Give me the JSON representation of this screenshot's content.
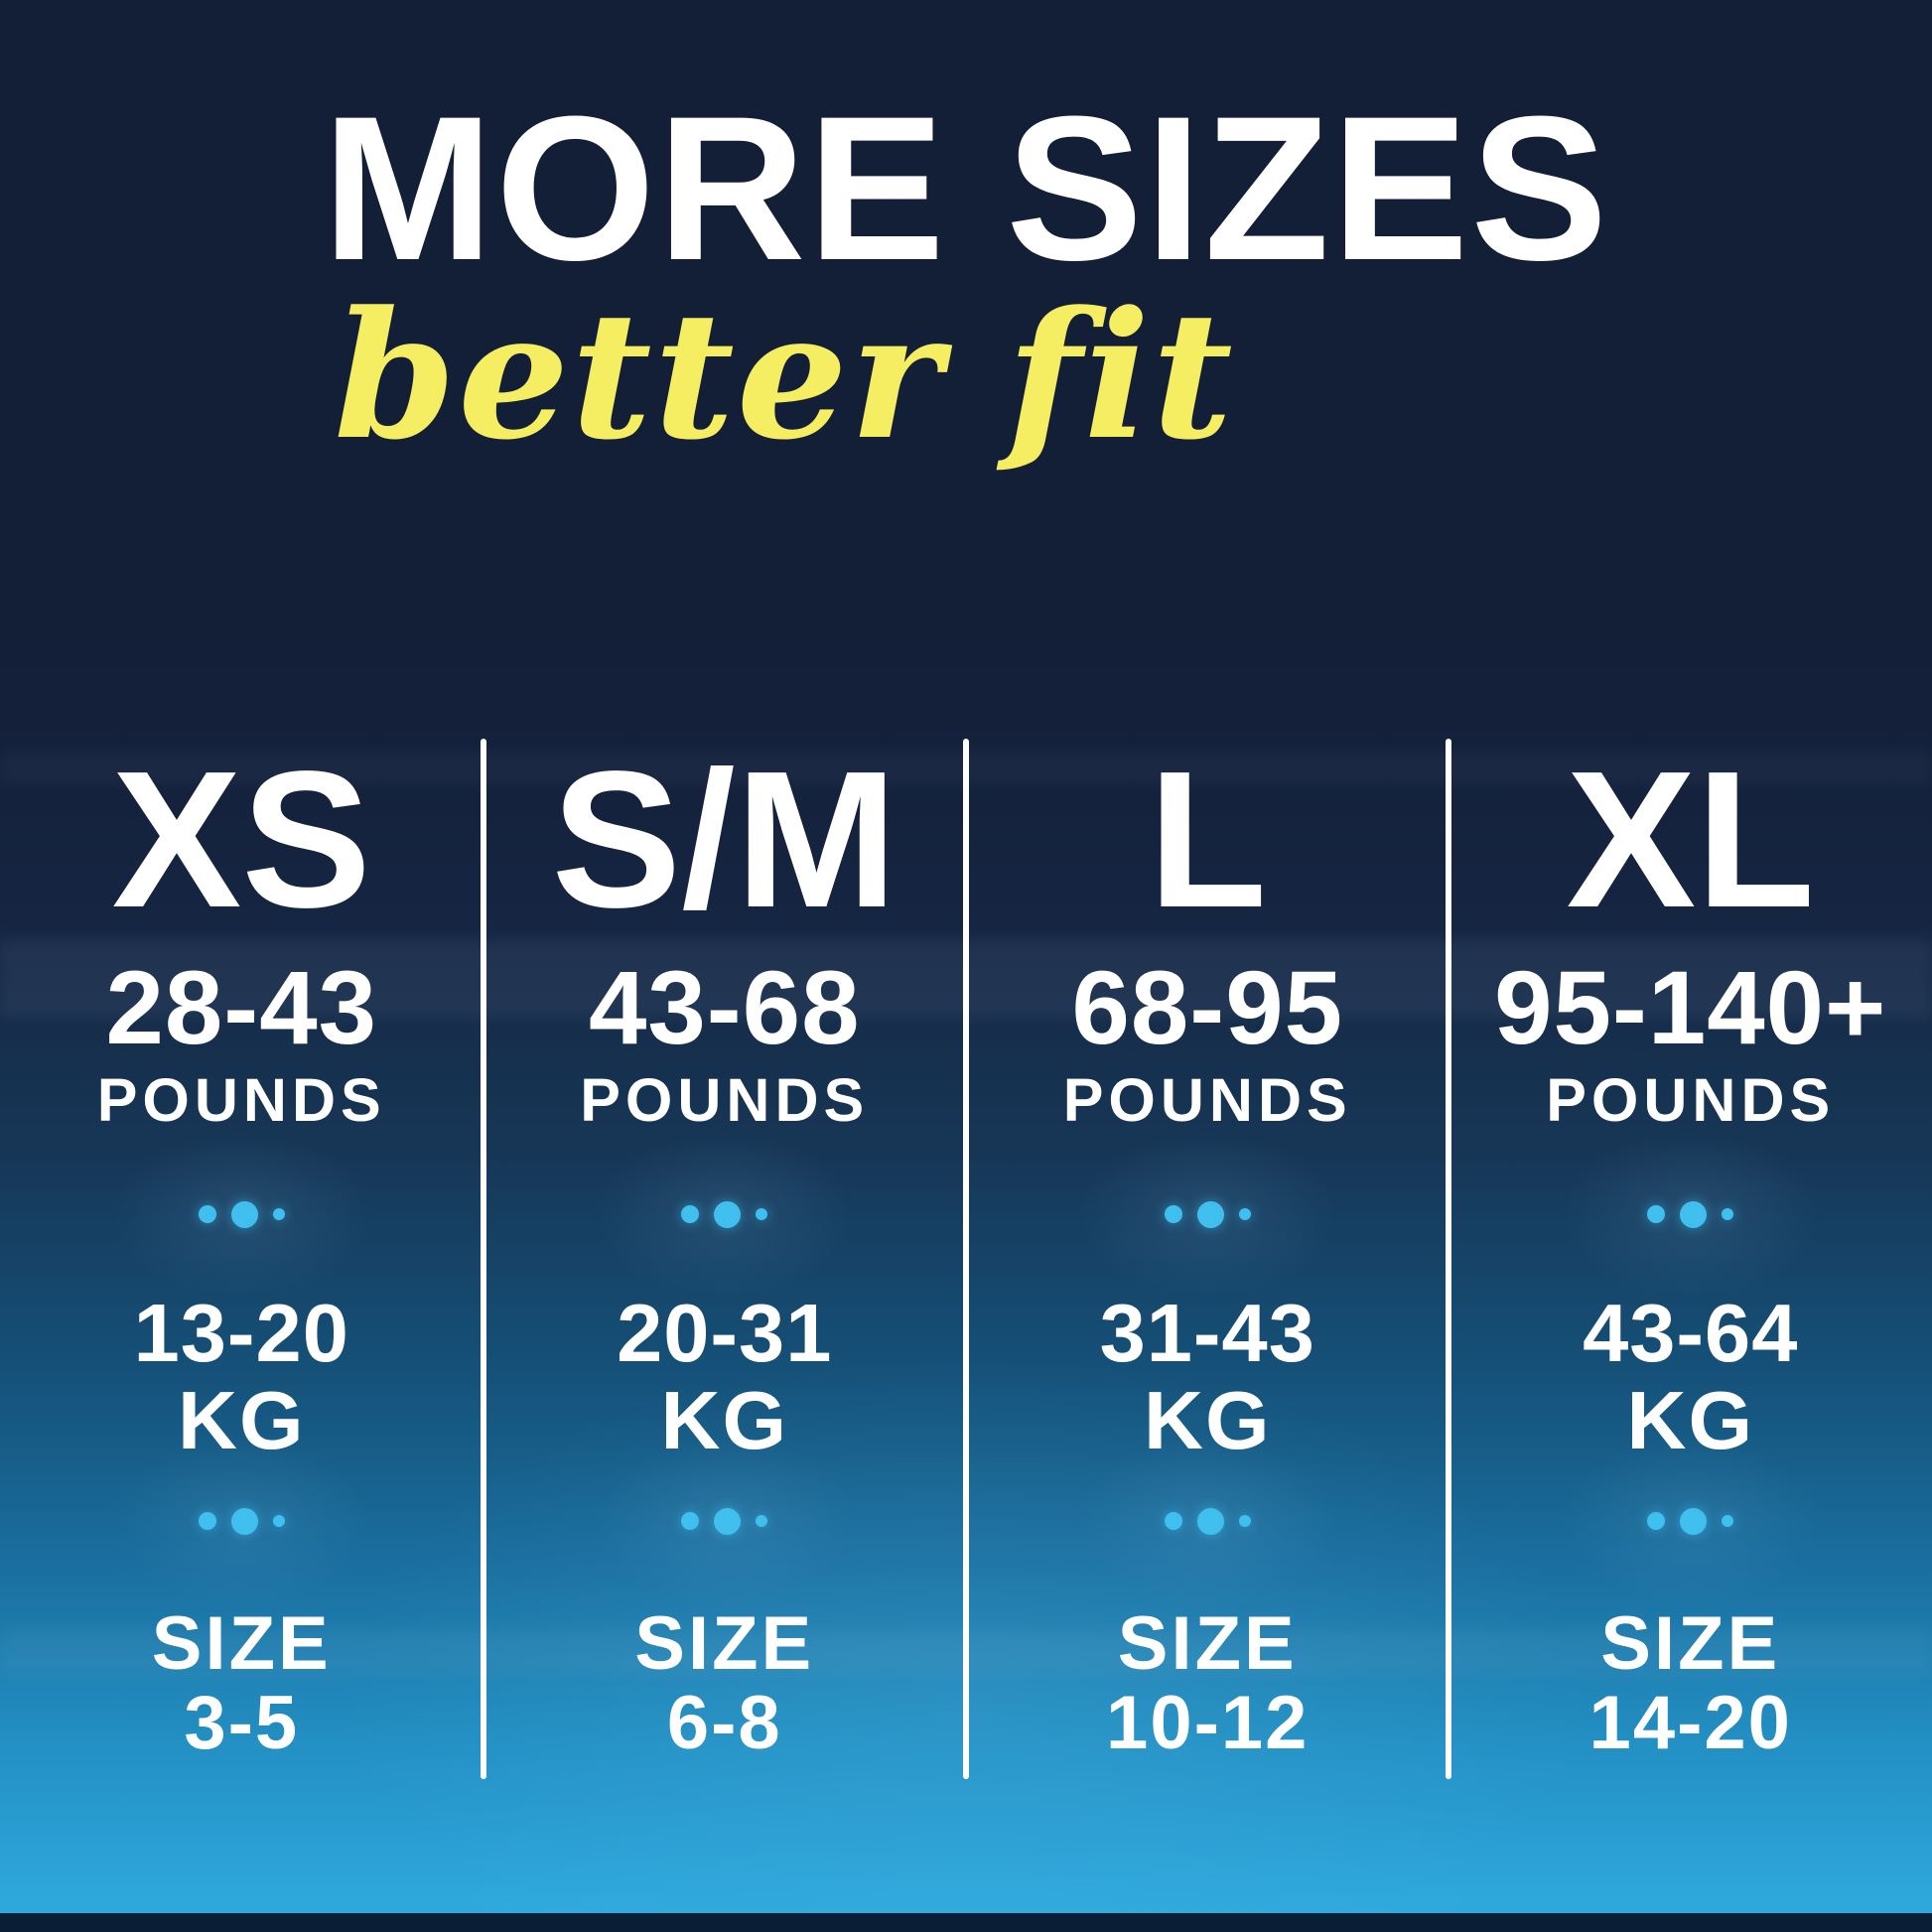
{
  "header": {
    "title": "MORE SIZES",
    "subtitle": "better fit"
  },
  "colors": {
    "background_navy": "#131e37",
    "background_bottom_blue": "#2fa9dc",
    "bottom_edge_bar": "#0a1e36",
    "accent_cyan": "#35b8ec",
    "dot_cyan": "#38c0f0",
    "accent_yellow": "#f5ed62",
    "text_white": "#ffffff"
  },
  "icons": {
    "dots_separator": "• ● •"
  },
  "size_columns": [
    {
      "label": "XS",
      "pounds_range": "28-43",
      "pounds_unit": "POUNDS",
      "kg_range": "13-20",
      "kg_unit": "KG",
      "size_label": "SIZE",
      "size_range": "3-5"
    },
    {
      "label": "S/M",
      "pounds_range": "43-68",
      "pounds_unit": "POUNDS",
      "kg_range": "20-31",
      "kg_unit": "KG",
      "size_label": "SIZE",
      "size_range": "6-8"
    },
    {
      "label": "L",
      "pounds_range": "68-95",
      "pounds_unit": "POUNDS",
      "kg_range": "31-43",
      "kg_unit": "KG",
      "size_label": "SIZE",
      "size_range": "10-12"
    },
    {
      "label": "XL",
      "pounds_range": "95-140+",
      "pounds_unit": "POUNDS",
      "kg_range": "43-64",
      "kg_unit": "KG",
      "size_label": "SIZE",
      "size_range": "14-20"
    }
  ],
  "chart_data": {
    "type": "table",
    "title": "MORE SIZES",
    "subtitle": "better fit",
    "columns": [
      "XS",
      "S/M",
      "L",
      "XL"
    ],
    "rows": [
      {
        "label": "Pounds",
        "values": [
          "28-43",
          "43-68",
          "68-95",
          "95-140+"
        ]
      },
      {
        "label": "Kg",
        "values": [
          "13-20",
          "20-31",
          "31-43",
          "43-64"
        ]
      },
      {
        "label": "Size",
        "values": [
          "3-5",
          "6-8",
          "10-12",
          "14-20"
        ]
      }
    ],
    "legend_position": "none",
    "grid": "column dividers only"
  }
}
